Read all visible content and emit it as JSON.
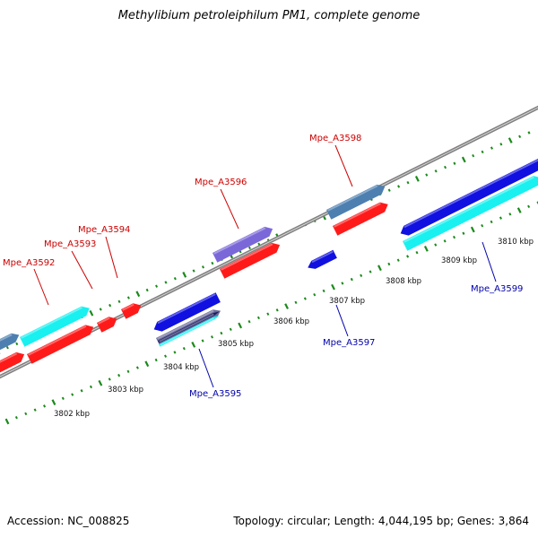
{
  "title": "Methylibium petroleiphilum PM1, complete genome",
  "footer": {
    "accession": "Accession: NC_008825",
    "summary": "Topology: circular; Length: 4,044,195 bp; Genes: 3,864"
  },
  "ruler": {
    "unit": "kbp",
    "ticks": [
      {
        "kbp": 3802,
        "label": "3802 kbp"
      },
      {
        "kbp": 3803,
        "label": "3803 kbp"
      },
      {
        "kbp": 3804,
        "label": "3804 kbp"
      },
      {
        "kbp": 3805,
        "label": "3805 kbp"
      },
      {
        "kbp": 3806,
        "label": "3806 kbp"
      },
      {
        "kbp": 3807,
        "label": "3807 kbp"
      },
      {
        "kbp": 3808,
        "label": "3808 kbp"
      },
      {
        "kbp": 3809,
        "label": "3809 kbp"
      },
      {
        "kbp": 3810,
        "label": "3810 kbp"
      }
    ]
  },
  "genes": [
    {
      "label": "Mpe_A3592",
      "strand": "forward"
    },
    {
      "label": "Mpe_A3593",
      "strand": "forward"
    },
    {
      "label": "Mpe_A3594",
      "strand": "forward"
    },
    {
      "label": "Mpe_A3595",
      "strand": "reverse"
    },
    {
      "label": "Mpe_A3596",
      "strand": "forward"
    },
    {
      "label": "Mpe_A3597",
      "strand": "reverse"
    },
    {
      "label": "Mpe_A3598",
      "strand": "forward"
    },
    {
      "label": "Mpe_A3599",
      "strand": "reverse"
    }
  ],
  "colors": {
    "forward_label": "#cc0000",
    "reverse_label": "#0000aa",
    "backbone": "#808080",
    "tick": "#1a8a1a",
    "cds_forward": "#ff1a1a",
    "cds_reverse": "#1010e0",
    "feature_cyan": "#19f0f0",
    "feature_steel": "#4d7fb0",
    "feature_violet": "#7b68d8"
  }
}
